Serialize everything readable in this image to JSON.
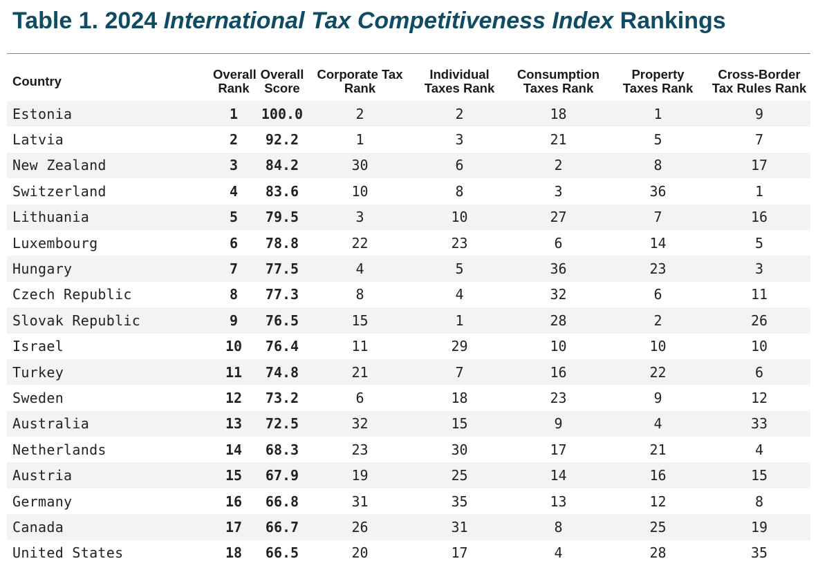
{
  "title": {
    "prefix": "Table 1. 2024 ",
    "italic": "International Tax Competitiveness Index",
    "suffix": " Rankings"
  },
  "headers": {
    "country": "Country",
    "overall_rank": [
      "Overall",
      "Rank"
    ],
    "overall_score": [
      "Overall",
      "Score"
    ],
    "corporate": [
      "Corporate Tax",
      "Rank"
    ],
    "individual": [
      "Individual",
      "Taxes Rank"
    ],
    "consumption": [
      "Consumption",
      "Taxes Rank"
    ],
    "property": [
      "Property",
      "Taxes Rank"
    ],
    "cross_border": [
      "Cross-Border",
      "Tax Rules Rank"
    ]
  },
  "rows": [
    [
      "Estonia",
      "1",
      "100.0",
      "2",
      "2",
      "18",
      "1",
      "9"
    ],
    [
      "Latvia",
      "2",
      "92.2",
      "1",
      "3",
      "21",
      "5",
      "7"
    ],
    [
      "New Zealand",
      "3",
      "84.2",
      "30",
      "6",
      "2",
      "8",
      "17"
    ],
    [
      "Switzerland",
      "4",
      "83.6",
      "10",
      "8",
      "3",
      "36",
      "1"
    ],
    [
      "Lithuania",
      "5",
      "79.5",
      "3",
      "10",
      "27",
      "7",
      "16"
    ],
    [
      "Luxembourg",
      "6",
      "78.8",
      "22",
      "23",
      "6",
      "14",
      "5"
    ],
    [
      "Hungary",
      "7",
      "77.5",
      "4",
      "5",
      "36",
      "23",
      "3"
    ],
    [
      "Czech Republic",
      "8",
      "77.3",
      "8",
      "4",
      "32",
      "6",
      "11"
    ],
    [
      "Slovak Republic",
      "9",
      "76.5",
      "15",
      "1",
      "28",
      "2",
      "26"
    ],
    [
      "Israel",
      "10",
      "76.4",
      "11",
      "29",
      "10",
      "10",
      "10"
    ],
    [
      "Turkey",
      "11",
      "74.8",
      "21",
      "7",
      "16",
      "22",
      "6"
    ],
    [
      "Sweden",
      "12",
      "73.2",
      "6",
      "18",
      "23",
      "9",
      "12"
    ],
    [
      "Australia",
      "13",
      "72.5",
      "32",
      "15",
      "9",
      "4",
      "33"
    ],
    [
      "Netherlands",
      "14",
      "68.3",
      "23",
      "30",
      "17",
      "21",
      "4"
    ],
    [
      "Austria",
      "15",
      "67.9",
      "19",
      "25",
      "14",
      "16",
      "15"
    ],
    [
      "Germany",
      "16",
      "66.8",
      "31",
      "35",
      "13",
      "12",
      "8"
    ],
    [
      "Canada",
      "17",
      "66.7",
      "26",
      "31",
      "8",
      "25",
      "19"
    ],
    [
      "United States",
      "18",
      "66.5",
      "20",
      "17",
      "4",
      "28",
      "35"
    ]
  ],
  "colors": {
    "title": "#0f4c63",
    "rule": "#6e8f9b",
    "stripe": "#f3f3f3"
  }
}
